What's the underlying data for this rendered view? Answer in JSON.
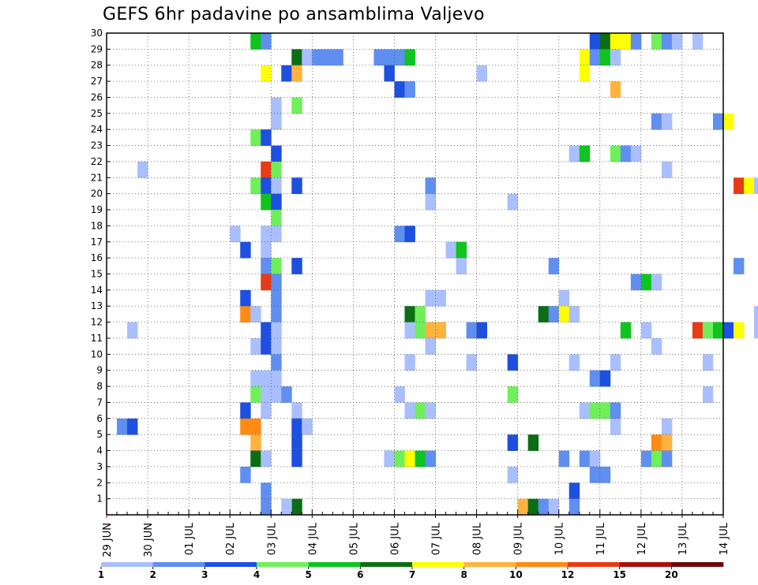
{
  "chart_data": {
    "type": "heatmap",
    "title": "GEFS 6hr padavine po ansamblima Valjevo",
    "xlabel": "",
    "ylabel": "",
    "x_ticks": [
      "29 JUN",
      "30 JUN",
      "01 JUL",
      "02 JUL",
      "03 JUL",
      "04 JUL",
      "05 JUL",
      "06 JUL",
      "07 JUL",
      "08 JUL",
      "09 JUL",
      "10 JUL",
      "11 JUL",
      "12 JUL",
      "13 JUL",
      "14 JUL"
    ],
    "x_range_days": [
      0,
      15
    ],
    "y_ticks": [
      1,
      2,
      3,
      4,
      5,
      6,
      7,
      8,
      9,
      10,
      11,
      12,
      13,
      14,
      15,
      16,
      17,
      18,
      19,
      20,
      21,
      22,
      23,
      24,
      25,
      26,
      27,
      28,
      29,
      30
    ],
    "y_range": [
      0,
      30
    ],
    "grid": true,
    "colorbar": {
      "placement": "bottom",
      "labels": [
        "1",
        "2",
        "3",
        "4",
        "5",
        "6",
        "7",
        "8",
        "10",
        "12",
        "15",
        "20"
      ],
      "colors": [
        "#aabfff",
        "#5f8ff0",
        "#1d4fe0",
        "#6ff05a",
        "#0ec41e",
        "#0b6d14",
        "#ffff00",
        "#ffb33f",
        "#ff8a14",
        "#e83a14",
        "#a80f0f",
        "#6b0a0a"
      ]
    },
    "cells": [
      {
        "member": 30,
        "step": 14,
        "level": 5
      },
      {
        "member": 30,
        "step": 15,
        "level": 2
      },
      {
        "member": 30,
        "step": 47,
        "level": 3
      },
      {
        "member": 30,
        "step": 48,
        "level": 6
      },
      {
        "member": 30,
        "step": 49,
        "level": 7
      },
      {
        "member": 30,
        "step": 50,
        "level": 7
      },
      {
        "member": 30,
        "step": 51,
        "level": 2
      },
      {
        "member": 30,
        "step": 53,
        "level": 4
      },
      {
        "member": 30,
        "step": 54,
        "level": 2
      },
      {
        "member": 30,
        "step": 55,
        "level": 1
      },
      {
        "member": 30,
        "step": 57,
        "level": 1
      },
      {
        "member": 30,
        "step": 65,
        "level": 1
      },
      {
        "member": 29,
        "step": 18,
        "level": 6
      },
      {
        "member": 29,
        "step": 19,
        "level": 1
      },
      {
        "member": 29,
        "step": 20,
        "level": 2
      },
      {
        "member": 29,
        "step": 21,
        "level": 2
      },
      {
        "member": 29,
        "step": 22,
        "level": 2
      },
      {
        "member": 29,
        "step": 26,
        "level": 2
      },
      {
        "member": 29,
        "step": 27,
        "level": 2
      },
      {
        "member": 29,
        "step": 28,
        "level": 2
      },
      {
        "member": 29,
        "step": 29,
        "level": 5
      },
      {
        "member": 29,
        "step": 46,
        "level": 7
      },
      {
        "member": 29,
        "step": 47,
        "level": 2
      },
      {
        "member": 29,
        "step": 48,
        "level": 5
      },
      {
        "member": 29,
        "step": 49,
        "level": 1
      },
      {
        "member": 28,
        "step": 15,
        "level": 7
      },
      {
        "member": 28,
        "step": 17,
        "level": 3
      },
      {
        "member": 28,
        "step": 18,
        "level": 8
      },
      {
        "member": 28,
        "step": 27,
        "level": 3
      },
      {
        "member": 28,
        "step": 36,
        "level": 1
      },
      {
        "member": 28,
        "step": 46,
        "level": 7
      },
      {
        "member": 27,
        "step": 28,
        "level": 3
      },
      {
        "member": 27,
        "step": 29,
        "level": 2
      },
      {
        "member": 27,
        "step": 49,
        "level": 8
      },
      {
        "member": 26,
        "step": 16,
        "level": 1
      },
      {
        "member": 26,
        "step": 18,
        "level": 4
      },
      {
        "member": 26,
        "step": 66,
        "level": 1
      },
      {
        "member": 26,
        "step": 67,
        "level": 5
      },
      {
        "member": 26,
        "step": 71,
        "level": 3
      },
      {
        "member": 25,
        "step": 16,
        "level": 1
      },
      {
        "member": 25,
        "step": 53,
        "level": 2
      },
      {
        "member": 25,
        "step": 54,
        "level": 1
      },
      {
        "member": 25,
        "step": 59,
        "level": 2
      },
      {
        "member": 25,
        "step": 60,
        "level": 7
      },
      {
        "member": 24,
        "step": 14,
        "level": 4
      },
      {
        "member": 24,
        "step": 15,
        "level": 3
      },
      {
        "member": 24,
        "step": 71,
        "level": 1
      },
      {
        "member": 23,
        "step": 16,
        "level": 3
      },
      {
        "member": 23,
        "step": 45,
        "level": 1
      },
      {
        "member": 23,
        "step": 46,
        "level": 5
      },
      {
        "member": 23,
        "step": 49,
        "level": 4
      },
      {
        "member": 23,
        "step": 50,
        "level": 2
      },
      {
        "member": 23,
        "step": 51,
        "level": 1
      },
      {
        "member": 23,
        "step": 65,
        "level": 1
      },
      {
        "member": 23,
        "step": 66,
        "level": 4
      },
      {
        "member": 23,
        "step": 70,
        "level": 2
      },
      {
        "member": 22,
        "step": 3,
        "level": 1
      },
      {
        "member": 22,
        "step": 15,
        "level": 10
      },
      {
        "member": 22,
        "step": 16,
        "level": 4
      },
      {
        "member": 22,
        "step": 54,
        "level": 1
      },
      {
        "member": 21,
        "step": 14,
        "level": 4
      },
      {
        "member": 21,
        "step": 15,
        "level": 3
      },
      {
        "member": 21,
        "step": 16,
        "level": 1
      },
      {
        "member": 21,
        "step": 18,
        "level": 3
      },
      {
        "member": 21,
        "step": 31,
        "level": 2
      },
      {
        "member": 21,
        "step": 61,
        "level": 10
      },
      {
        "member": 21,
        "step": 62,
        "level": 7
      },
      {
        "member": 21,
        "step": 63,
        "level": 1
      },
      {
        "member": 21,
        "step": 64,
        "level": 2
      },
      {
        "member": 21,
        "step": 65,
        "level": 2
      },
      {
        "member": 21,
        "step": 66,
        "level": 1
      },
      {
        "member": 21,
        "step": 68,
        "level": 6
      },
      {
        "member": 20,
        "step": 15,
        "level": 5
      },
      {
        "member": 20,
        "step": 16,
        "level": 3
      },
      {
        "member": 20,
        "step": 31,
        "level": 1
      },
      {
        "member": 20,
        "step": 39,
        "level": 1
      },
      {
        "member": 19,
        "step": 16,
        "level": 4
      },
      {
        "member": 18,
        "step": 12,
        "level": 1
      },
      {
        "member": 18,
        "step": 15,
        "level": 1
      },
      {
        "member": 18,
        "step": 16,
        "level": 1
      },
      {
        "member": 18,
        "step": 28,
        "level": 2
      },
      {
        "member": 18,
        "step": 29,
        "level": 3
      },
      {
        "member": 18,
        "step": 67,
        "level": 4
      },
      {
        "member": 17,
        "step": 13,
        "level": 3
      },
      {
        "member": 17,
        "step": 15,
        "level": 1
      },
      {
        "member": 17,
        "step": 33,
        "level": 1
      },
      {
        "member": 17,
        "step": 34,
        "level": 5
      },
      {
        "member": 17,
        "step": 67,
        "level": 2
      },
      {
        "member": 17,
        "step": 68,
        "level": 4
      },
      {
        "member": 17,
        "step": 69,
        "level": 12
      },
      {
        "member": 17,
        "step": 70,
        "level": 2
      },
      {
        "member": 17,
        "step": 71,
        "level": 4
      },
      {
        "member": 16,
        "step": 15,
        "level": 2
      },
      {
        "member": 16,
        "step": 16,
        "level": 4
      },
      {
        "member": 16,
        "step": 18,
        "level": 3
      },
      {
        "member": 16,
        "step": 34,
        "level": 1
      },
      {
        "member": 16,
        "step": 43,
        "level": 2
      },
      {
        "member": 16,
        "step": 61,
        "level": 2
      },
      {
        "member": 16,
        "step": 64,
        "level": 3
      },
      {
        "member": 16,
        "step": 65,
        "level": 1
      },
      {
        "member": 15,
        "step": 15,
        "level": 10
      },
      {
        "member": 15,
        "step": 16,
        "level": 2
      },
      {
        "member": 15,
        "step": 51,
        "level": 2
      },
      {
        "member": 15,
        "step": 52,
        "level": 5
      },
      {
        "member": 15,
        "step": 53,
        "level": 1
      },
      {
        "member": 14,
        "step": 13,
        "level": 3
      },
      {
        "member": 14,
        "step": 16,
        "level": 2
      },
      {
        "member": 14,
        "step": 31,
        "level": 1
      },
      {
        "member": 14,
        "step": 32,
        "level": 1
      },
      {
        "member": 14,
        "step": 44,
        "level": 1
      },
      {
        "member": 13,
        "step": 13,
        "level": 9
      },
      {
        "member": 13,
        "step": 14,
        "level": 1
      },
      {
        "member": 13,
        "step": 16,
        "level": 2
      },
      {
        "member": 13,
        "step": 29,
        "level": 6
      },
      {
        "member": 13,
        "step": 30,
        "level": 4
      },
      {
        "member": 13,
        "step": 42,
        "level": 6
      },
      {
        "member": 13,
        "step": 43,
        "level": 2
      },
      {
        "member": 13,
        "step": 44,
        "level": 7
      },
      {
        "member": 13,
        "step": 45,
        "level": 1
      },
      {
        "member": 13,
        "step": 63,
        "level": 1
      },
      {
        "member": 13,
        "step": 64,
        "level": 8
      },
      {
        "member": 12,
        "step": 2,
        "level": 1
      },
      {
        "member": 12,
        "step": 15,
        "level": 3
      },
      {
        "member": 12,
        "step": 16,
        "level": 1
      },
      {
        "member": 12,
        "step": 29,
        "level": 1
      },
      {
        "member": 12,
        "step": 30,
        "level": 4
      },
      {
        "member": 12,
        "step": 31,
        "level": 8
      },
      {
        "member": 12,
        "step": 32,
        "level": 8
      },
      {
        "member": 12,
        "step": 35,
        "level": 2
      },
      {
        "member": 12,
        "step": 36,
        "level": 3
      },
      {
        "member": 12,
        "step": 50,
        "level": 5
      },
      {
        "member": 12,
        "step": 52,
        "level": 1
      },
      {
        "member": 12,
        "step": 57,
        "level": 10
      },
      {
        "member": 12,
        "step": 58,
        "level": 4
      },
      {
        "member": 12,
        "step": 59,
        "level": 5
      },
      {
        "member": 12,
        "step": 60,
        "level": 3
      },
      {
        "member": 12,
        "step": 61,
        "level": 7
      },
      {
        "member": 12,
        "step": 63,
        "level": 1
      },
      {
        "member": 12,
        "step": 64,
        "level": 2
      },
      {
        "member": 12,
        "step": 65,
        "level": 8
      },
      {
        "member": 12,
        "step": 66,
        "level": 6
      },
      {
        "member": 12,
        "step": 70,
        "level": 8
      },
      {
        "member": 12,
        "step": 71,
        "level": 3
      },
      {
        "member": 11,
        "step": 14,
        "level": 1
      },
      {
        "member": 11,
        "step": 15,
        "level": 3
      },
      {
        "member": 11,
        "step": 16,
        "level": 1
      },
      {
        "member": 11,
        "step": 31,
        "level": 1
      },
      {
        "member": 11,
        "step": 53,
        "level": 1
      },
      {
        "member": 10,
        "step": 16,
        "level": 2
      },
      {
        "member": 10,
        "step": 29,
        "level": 1
      },
      {
        "member": 10,
        "step": 35,
        "level": 1
      },
      {
        "member": 10,
        "step": 39,
        "level": 3
      },
      {
        "member": 10,
        "step": 45,
        "level": 1
      },
      {
        "member": 10,
        "step": 49,
        "level": 1
      },
      {
        "member": 10,
        "step": 58,
        "level": 1
      },
      {
        "member": 9,
        "step": 14,
        "level": 1
      },
      {
        "member": 9,
        "step": 15,
        "level": 1
      },
      {
        "member": 9,
        "step": 16,
        "level": 1
      },
      {
        "member": 9,
        "step": 47,
        "level": 2
      },
      {
        "member": 9,
        "step": 48,
        "level": 3
      },
      {
        "member": 9,
        "step": 68,
        "level": 1
      },
      {
        "member": 8,
        "step": 14,
        "level": 4
      },
      {
        "member": 8,
        "step": 15,
        "level": 1
      },
      {
        "member": 8,
        "step": 16,
        "level": 1
      },
      {
        "member": 8,
        "step": 17,
        "level": 2
      },
      {
        "member": 8,
        "step": 28,
        "level": 1
      },
      {
        "member": 8,
        "step": 39,
        "level": 4
      },
      {
        "member": 8,
        "step": 58,
        "level": 1
      },
      {
        "member": 8,
        "step": 70,
        "level": 4
      },
      {
        "member": 8,
        "step": 71,
        "level": 5
      },
      {
        "member": 7,
        "step": 13,
        "level": 3
      },
      {
        "member": 7,
        "step": 15,
        "level": 1
      },
      {
        "member": 7,
        "step": 18,
        "level": 1
      },
      {
        "member": 7,
        "step": 29,
        "level": 1
      },
      {
        "member": 7,
        "step": 30,
        "level": 4
      },
      {
        "member": 7,
        "step": 31,
        "level": 1
      },
      {
        "member": 7,
        "step": 46,
        "level": 1
      },
      {
        "member": 7,
        "step": 47,
        "level": 4
      },
      {
        "member": 7,
        "step": 48,
        "level": 4
      },
      {
        "member": 7,
        "step": 49,
        "level": 2
      },
      {
        "member": 7,
        "step": 67,
        "level": 6
      },
      {
        "member": 7,
        "step": 70,
        "level": 2
      },
      {
        "member": 6,
        "step": 1,
        "level": 2
      },
      {
        "member": 6,
        "step": 2,
        "level": 3
      },
      {
        "member": 6,
        "step": 13,
        "level": 9
      },
      {
        "member": 6,
        "step": 14,
        "level": 9
      },
      {
        "member": 6,
        "step": 18,
        "level": 3
      },
      {
        "member": 6,
        "step": 19,
        "level": 1
      },
      {
        "member": 6,
        "step": 49,
        "level": 1
      },
      {
        "member": 6,
        "step": 54,
        "level": 1
      },
      {
        "member": 5,
        "step": 14,
        "level": 8
      },
      {
        "member": 5,
        "step": 18,
        "level": 3
      },
      {
        "member": 5,
        "step": 39,
        "level": 3
      },
      {
        "member": 5,
        "step": 41,
        "level": 6
      },
      {
        "member": 5,
        "step": 53,
        "level": 9
      },
      {
        "member": 5,
        "step": 54,
        "level": 8
      },
      {
        "member": 5,
        "step": 66,
        "level": 8
      },
      {
        "member": 5,
        "step": 67,
        "level": 3
      },
      {
        "member": 5,
        "step": 68,
        "level": 2
      },
      {
        "member": 4,
        "step": 14,
        "level": 6
      },
      {
        "member": 4,
        "step": 15,
        "level": 1
      },
      {
        "member": 4,
        "step": 18,
        "level": 3
      },
      {
        "member": 4,
        "step": 27,
        "level": 1
      },
      {
        "member": 4,
        "step": 28,
        "level": 4
      },
      {
        "member": 4,
        "step": 29,
        "level": 7
      },
      {
        "member": 4,
        "step": 30,
        "level": 5
      },
      {
        "member": 4,
        "step": 31,
        "level": 2
      },
      {
        "member": 4,
        "step": 44,
        "level": 2
      },
      {
        "member": 4,
        "step": 46,
        "level": 2
      },
      {
        "member": 4,
        "step": 47,
        "level": 1
      },
      {
        "member": 4,
        "step": 52,
        "level": 2
      },
      {
        "member": 4,
        "step": 53,
        "level": 4
      },
      {
        "member": 4,
        "step": 54,
        "level": 2
      },
      {
        "member": 3,
        "step": 13,
        "level": 2
      },
      {
        "member": 3,
        "step": 47,
        "level": 2
      },
      {
        "member": 3,
        "step": 48,
        "level": 2
      },
      {
        "member": 3,
        "step": 39,
        "level": 1
      },
      {
        "member": 2,
        "step": 15,
        "level": 2
      },
      {
        "member": 2,
        "step": 45,
        "level": 3
      },
      {
        "member": 1,
        "step": 15,
        "level": 2
      },
      {
        "member": 1,
        "step": 18,
        "level": 6
      },
      {
        "member": 1,
        "step": 40,
        "level": 8
      },
      {
        "member": 1,
        "step": 41,
        "level": 6
      },
      {
        "member": 1,
        "step": 42,
        "level": 2
      },
      {
        "member": 1,
        "step": 45,
        "level": 2
      },
      {
        "member": 1,
        "step": 17,
        "level": 1
      },
      {
        "member": 1,
        "step": 43,
        "level": 1
      }
    ]
  }
}
